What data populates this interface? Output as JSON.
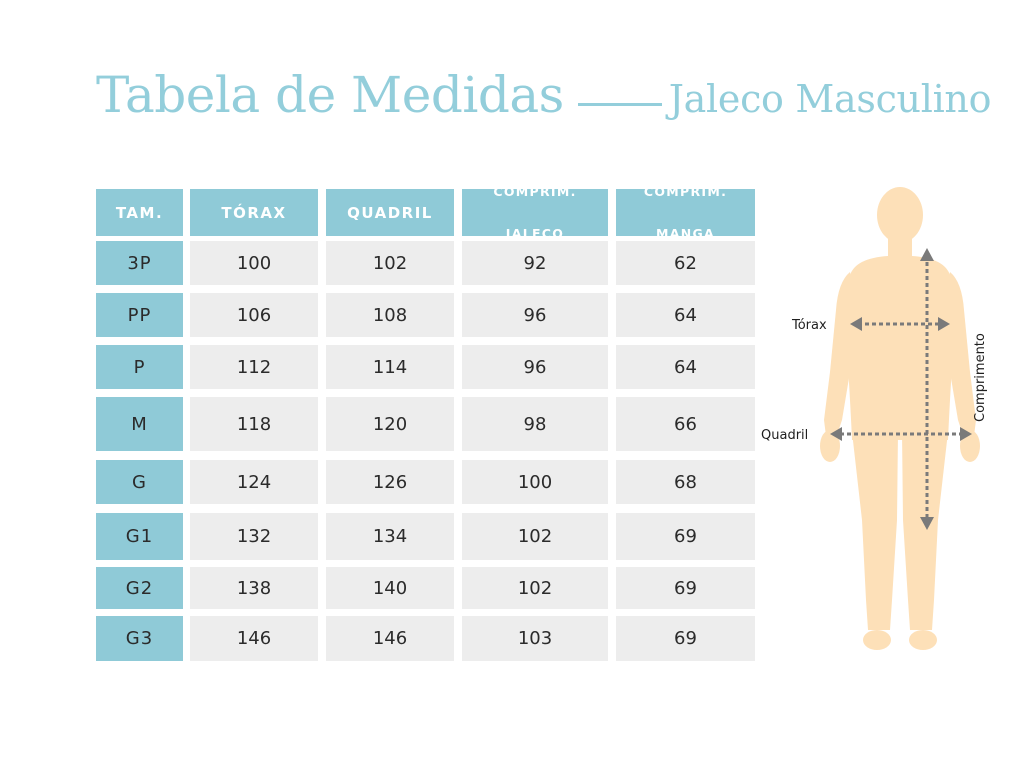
{
  "title": {
    "main": "Tabela de Medidas",
    "sub": "Jaleco Masculino"
  },
  "colors": {
    "accent": "#93cedb",
    "header_bg": "#8fcad7",
    "cell_bg": "#ededed",
    "body_figure": "#fde0b8",
    "arrow": "#7a7a7a"
  },
  "table": {
    "headers": [
      "TAM.",
      "TÓRAX",
      "QUADRIL",
      "COMPRIM.\nJALECO",
      "COMPRIM.\nMANGA"
    ],
    "rows": [
      {
        "size": "3P",
        "torax": "100",
        "quadril": "102",
        "comprim_jaleco": "92",
        "comprim_manga": "62"
      },
      {
        "size": "PP",
        "torax": "106",
        "quadril": "108",
        "comprim_jaleco": "96",
        "comprim_manga": "64"
      },
      {
        "size": "P",
        "torax": "112",
        "quadril": "114",
        "comprim_jaleco": "96",
        "comprim_manga": "64"
      },
      {
        "size": "M",
        "torax": "118",
        "quadril": "120",
        "comprim_jaleco": "98",
        "comprim_manga": "66"
      },
      {
        "size": "G",
        "torax": "124",
        "quadril": "126",
        "comprim_jaleco": "100",
        "comprim_manga": "68"
      },
      {
        "size": "G1",
        "torax": "132",
        "quadril": "134",
        "comprim_jaleco": "102",
        "comprim_manga": "69"
      },
      {
        "size": "G2",
        "torax": "138",
        "quadril": "140",
        "comprim_jaleco": "102",
        "comprim_manga": "69"
      },
      {
        "size": "G3",
        "torax": "146",
        "quadril": "146",
        "comprim_jaleco": "103",
        "comprim_manga": "69"
      }
    ]
  },
  "figure": {
    "labels": {
      "torax": "Tórax",
      "quadril": "Quadril",
      "comprimento": "Comprimento"
    }
  }
}
